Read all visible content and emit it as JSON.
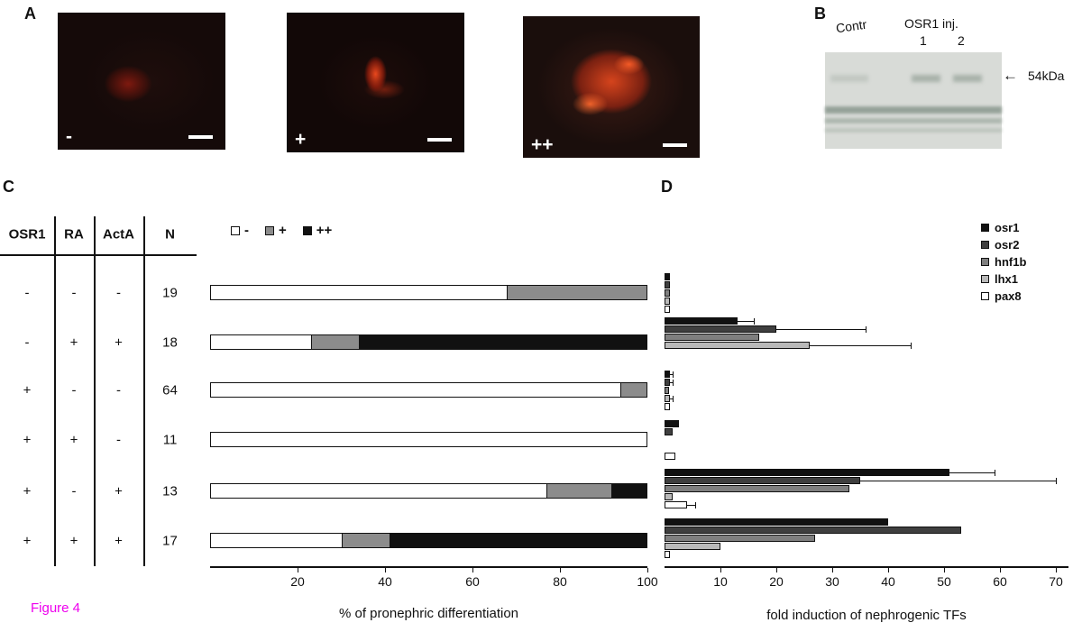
{
  "figure_label": "Figure 4",
  "panels": {
    "a": "A",
    "b": "B",
    "c": "C",
    "d": "D"
  },
  "panel_a": {
    "images": [
      {
        "label": "-"
      },
      {
        "label": "+"
      },
      {
        "label": "++"
      }
    ]
  },
  "panel_b": {
    "lane_labels": [
      "Contr",
      "OSR1 inj."
    ],
    "lane_numbers": [
      "1",
      "2"
    ],
    "arrow": "←",
    "band_label": "54kDa"
  },
  "panel_c": {
    "table": {
      "headers": [
        "OSR1",
        "RA",
        "ActA",
        "N"
      ],
      "rows": [
        [
          "-",
          "-",
          "-",
          "19"
        ],
        [
          "-",
          "+",
          "+",
          "18"
        ],
        [
          "+",
          "-",
          "-",
          "64"
        ],
        [
          "+",
          "+",
          "-",
          "11"
        ],
        [
          "+",
          "-",
          "+",
          "13"
        ],
        [
          "+",
          "+",
          "+",
          "17"
        ]
      ]
    }
  },
  "chart_data": [
    {
      "type": "bar",
      "orientation": "horizontal",
      "stacked": true,
      "xlabel": "% of pronephric differentiation",
      "xlim": [
        0,
        100
      ],
      "xticks": [
        20,
        40,
        60,
        80,
        100
      ],
      "categories": [
        "OSR1 - / RA - / ActA - (N=19)",
        "OSR1 - / RA + / ActA + (N=18)",
        "OSR1 + / RA - / ActA - (N=64)",
        "OSR1 + / RA + / ActA - (N=11)",
        "OSR1 + / RA - / ActA + (N=13)",
        "OSR1 + / RA + / ActA + (N=17)"
      ],
      "series": [
        {
          "name": "-",
          "color": "#ffffff",
          "values": [
            68,
            23,
            94,
            100,
            77,
            30
          ]
        },
        {
          "name": "+",
          "color": "#8c8c8c",
          "values": [
            32,
            11,
            6,
            0,
            15,
            11
          ]
        },
        {
          "name": "++",
          "color": "#111111",
          "values": [
            0,
            66,
            0,
            0,
            8,
            59
          ]
        }
      ],
      "legend_position": "top-left",
      "grid": false
    },
    {
      "type": "bar",
      "orientation": "horizontal",
      "grouped": true,
      "xlabel": "fold induction of nephrogenic TFs",
      "xlim": [
        0,
        75
      ],
      "xticks": [
        10,
        20,
        30,
        40,
        50,
        60,
        70
      ],
      "categories": [
        "OSR1 - / RA - / ActA - ",
        "OSR1 - / RA + / ActA +",
        "OSR1 + / RA - / ActA -",
        "OSR1 + / RA + / ActA -",
        "OSR1 + / RA - / ActA +",
        "OSR1 + / RA + / ActA +"
      ],
      "series": [
        {
          "name": "osr1",
          "color": "#111111",
          "values": [
            1,
            13,
            1,
            2.5,
            51,
            40
          ],
          "errors": [
            0,
            3,
            0.5,
            0,
            8,
            0
          ]
        },
        {
          "name": "osr2",
          "color": "#3f3f3f",
          "values": [
            1,
            20,
            1,
            1.5,
            35,
            53
          ],
          "errors": [
            0,
            16,
            0.5,
            0,
            35,
            0
          ]
        },
        {
          "name": "hnf1b",
          "color": "#7f7f7f",
          "values": [
            1,
            17,
            0.8,
            0,
            33,
            27
          ],
          "errors": [
            0,
            0,
            0,
            0,
            0,
            0
          ]
        },
        {
          "name": "lhx1",
          "color": "#b9b9b9",
          "values": [
            1,
            26,
            1,
            0,
            1.5,
            10
          ],
          "errors": [
            0,
            18,
            0.5,
            0,
            0,
            0
          ]
        },
        {
          "name": "pax8",
          "color": "#ffffff",
          "values": [
            1,
            0,
            1,
            2,
            4,
            1
          ],
          "errors": [
            0,
            0,
            0,
            0,
            1.5,
            0
          ]
        }
      ],
      "legend_position": "right",
      "grid": false
    }
  ]
}
